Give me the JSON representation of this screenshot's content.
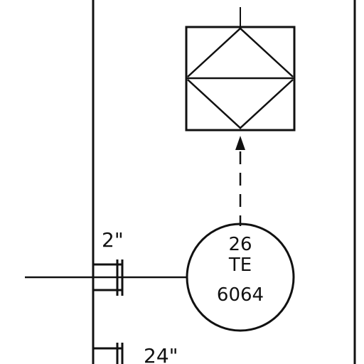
{
  "instrument": {
    "loop_number": "26",
    "function_code": "TE",
    "tag_number": "6064"
  },
  "pipe_sizes": {
    "upper": "2\"",
    "lower": "24\""
  },
  "colors": {
    "line": "#111111",
    "background": "#ffffff"
  }
}
